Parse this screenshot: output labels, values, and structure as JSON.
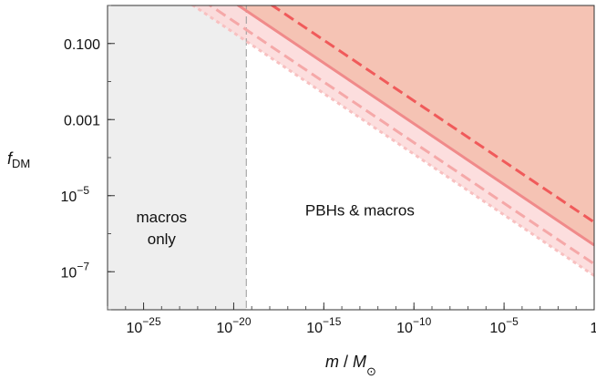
{
  "chart_data": {
    "type": "line",
    "title": "",
    "xlabel": {
      "main": "m",
      "sep": " / ",
      "M": "M",
      "sub": "⊙"
    },
    "ylabel": {
      "main": "f",
      "sub": "DM"
    },
    "xscale": "log",
    "yscale": "log",
    "xlim": [
      1e-27,
      1
    ],
    "ylim": [
      1e-08,
      1
    ],
    "x_ticks": [
      {
        "value": 1e-25,
        "base": "10",
        "exp": "−25"
      },
      {
        "value": 1e-20,
        "base": "10",
        "exp": "−20"
      },
      {
        "value": 1e-15,
        "base": "10",
        "exp": "−15"
      },
      {
        "value": 1e-10,
        "base": "10",
        "exp": "−10"
      },
      {
        "value": 1e-05,
        "base": "10",
        "exp": "−5"
      },
      {
        "value": 1,
        "base": "1",
        "exp": ""
      }
    ],
    "y_ticks": [
      {
        "value": 0.1,
        "base": "0.100",
        "exp": ""
      },
      {
        "value": 0.001,
        "base": "0.001",
        "exp": ""
      },
      {
        "value": 1e-05,
        "base": "10",
        "exp": "−5"
      },
      {
        "value": 1e-07,
        "base": "10",
        "exp": "−7"
      }
    ],
    "grid": false,
    "boundary_x": 5e-20,
    "regions": [
      {
        "label_lines": [
          "macros",
          "only"
        ],
        "x": 1e-24,
        "y": 2e-06
      },
      {
        "label_lines": [
          "PBHs & macros"
        ],
        "x": 1e-13,
        "y": 3e-06
      }
    ],
    "series": [
      {
        "style": "dashed",
        "x": [
          1e-26,
          1
        ],
        "y": [
          398,
          2e-06
        ],
        "color": "#f05a5a"
      },
      {
        "style": "solid",
        "x": [
          1e-26,
          1
        ],
        "y": [
          100,
          5e-07
        ],
        "color": "#f08a8a"
      },
      {
        "style": "dashed",
        "x": [
          1e-26,
          1
        ],
        "y": [
          31.6,
          1.6e-07
        ],
        "color": "#f5a8a8"
      },
      {
        "style": "dotted",
        "x": [
          1e-26,
          1
        ],
        "y": [
          15.8,
          7.9e-08
        ],
        "color": "#f8c0c0"
      }
    ],
    "colors": {
      "excluded_fill": "#f5c3b4",
      "band_fill": "#fbd8d8",
      "macro_region": "#eeeeee",
      "boundary": "#999999"
    }
  }
}
